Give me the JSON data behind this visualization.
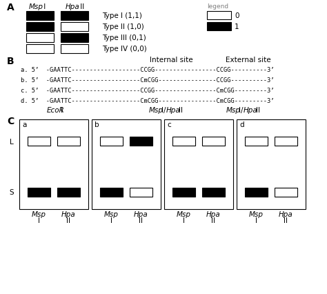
{
  "types": [
    "Type I (1,1)",
    "Type II (1,0)",
    "Type III (0,1)",
    "Type IV (0,0)"
  ],
  "type_msp_fill": [
    "black",
    "black",
    "white",
    "white"
  ],
  "type_hpa_fill": [
    "black",
    "white",
    "black",
    "white"
  ],
  "legend_items": [
    "0",
    "1"
  ],
  "legend_fills": [
    "white",
    "black"
  ],
  "seq_a": "a. 5’  -GAATTC-------------------CCGG-----------------CCGG----------3’",
  "seq_b": "b. 5’  -GAATTC-------------------CmCGG----------------CCGG----------3’",
  "seq_c": "c. 5’  -GAATTC-------------------CCGG-----------------CmCGG---------3’",
  "seq_d": "d. 5’  -GAATTC-------------------CmCGG----------------CmCGG---------3’",
  "panel_labels": [
    "a",
    "b",
    "c",
    "d"
  ],
  "panel_L_msp_fill": [
    "white",
    "white",
    "white",
    "white"
  ],
  "panel_L_hpa_fill": [
    "white",
    "black",
    "white",
    "white"
  ],
  "panel_S_msp_fill": [
    "black",
    "black",
    "black",
    "black"
  ],
  "panel_S_hpa_fill": [
    "black",
    "white",
    "black",
    "white"
  ],
  "bg_color": "white"
}
